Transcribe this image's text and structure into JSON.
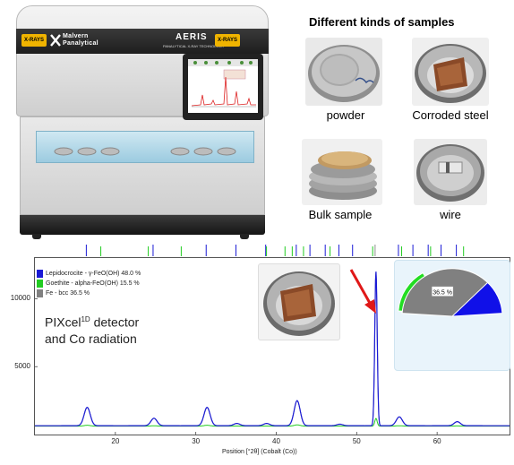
{
  "instrument": {
    "brand_line1": "Malvern",
    "brand_line2": "Panalytical",
    "model": "AERIS",
    "model_subtitle": "PANALYTICAL X-RAY TECHNOLOGY",
    "warning_left": "X-RAYS",
    "warning_right": "X-RAYS",
    "colors": {
      "band": "#1e1e1e",
      "warning": "#f0b400",
      "window": "#9ccbe0"
    }
  },
  "samples": {
    "title": "Different kinds of samples",
    "items": [
      {
        "caption": "powder",
        "icon": "powder-sample-photo"
      },
      {
        "caption": "Corroded steel",
        "icon": "corroded-steel-sample-photo"
      },
      {
        "caption": "Bulk sample",
        "icon": "bulk-sample-photo"
      },
      {
        "caption": "wire",
        "icon": "wire-sample-photo"
      }
    ]
  },
  "annotation": {
    "line1_prefix": "PIXcel",
    "line1_sup": "1D",
    "line1_suffix": " detector",
    "line2": "and Co radiation"
  },
  "chart_data": {
    "type": "line",
    "xlabel": "Position [°2θ] (Cobalt (Co))",
    "ylabel": "",
    "xlim": [
      10,
      69
    ],
    "ylim": [
      0,
      13000
    ],
    "x_ticks": [
      20,
      30,
      40,
      50,
      60
    ],
    "y_ticks": [
      5000,
      10000
    ],
    "grid": false,
    "legend_position": "top-left",
    "series": [
      {
        "name": "Lepidocrocite - γ-FeO(OH) 48.0 %",
        "color": "#1a1ad6"
      },
      {
        "name": "Goethite - alpha-FeO(OH) 15.5 %",
        "color": "#22cc22"
      },
      {
        "name": "Fe - bcc 36.5 %",
        "color": "#808080"
      }
    ],
    "pattern": {
      "baseline": 650,
      "peaks": [
        {
          "x": 16.5,
          "y": 2000
        },
        {
          "x": 24.8,
          "y": 1200
        },
        {
          "x": 31.4,
          "y": 2000
        },
        {
          "x": 35.1,
          "y": 820
        },
        {
          "x": 38.8,
          "y": 820
        },
        {
          "x": 42.6,
          "y": 2500
        },
        {
          "x": 47.9,
          "y": 760
        },
        {
          "x": 52.4,
          "y": 12000
        },
        {
          "x": 55.3,
          "y": 1300
        },
        {
          "x": 62.5,
          "y": 950
        }
      ]
    },
    "reference_lines": {
      "blue": [
        16.5,
        24.8,
        31.4,
        35.1,
        38.8,
        42.6,
        44.3,
        46.2,
        47.9,
        49.6,
        55.3,
        57.1,
        59.0,
        60.6,
        62.5
      ],
      "green": [
        18.3,
        24.2,
        28.3,
        38.9,
        41.2,
        42.1,
        43.5,
        46.8,
        52.1,
        55.7,
        59.3,
        63.4
      ],
      "gray": [
        52.4
      ]
    },
    "pie": {
      "slices": [
        {
          "label": "48 %",
          "value": 48.0,
          "color": "#1010e8"
        },
        {
          "label": "15.5 %",
          "value": 15.5,
          "color": "#22dd22"
        },
        {
          "label": "36.5 %",
          "value": 36.5,
          "color": "#808080"
        }
      ]
    }
  }
}
